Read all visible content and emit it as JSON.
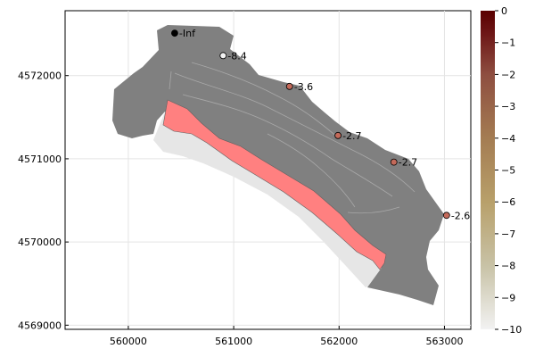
{
  "chart_data": {
    "type": "map",
    "xlim": [
      559400,
      563250
    ],
    "ylim": [
      4568950,
      4572780
    ],
    "x_ticks": [
      560000,
      561000,
      562000,
      563000
    ],
    "y_ticks": [
      4569000,
      4570000,
      4571000,
      4572000
    ],
    "x_tick_labels": [
      "560000",
      "561000",
      "562000",
      "563000"
    ],
    "y_tick_labels": [
      "4569000",
      "4570000",
      "4571000",
      "4572000"
    ],
    "grid": true,
    "points": [
      {
        "x": 560440,
        "y": 4572510,
        "label": "-Inf",
        "value": null
      },
      {
        "x": 560900,
        "y": 4572240,
        "label": "-8.4",
        "value": -8.4
      },
      {
        "x": 561530,
        "y": 4571870,
        "label": "-3.6",
        "value": -3.6
      },
      {
        "x": 561990,
        "y": 4571280,
        "label": "-2.7",
        "value": -2.7
      },
      {
        "x": 562520,
        "y": 4570960,
        "label": "-2.7",
        "value": -2.7
      },
      {
        "x": 563020,
        "y": 4570320,
        "label": "-2.6",
        "value": -2.6
      }
    ],
    "colorbar": {
      "min": -10,
      "max": 0,
      "ticks": [
        "0",
        "−1",
        "−2",
        "−3",
        "−4",
        "−5",
        "−6",
        "−7",
        "−8",
        "−9",
        "−10"
      ],
      "colors": [
        "#f2f2f2",
        "#c8c2a6",
        "#b8a06a",
        "#a47c52",
        "#8e4e40",
        "#6d1616",
        "#5a0000"
      ]
    },
    "region_colors": {
      "catchment": "#808080",
      "flooded": "#ff8080",
      "floodplain": "#e6e6e6"
    }
  }
}
